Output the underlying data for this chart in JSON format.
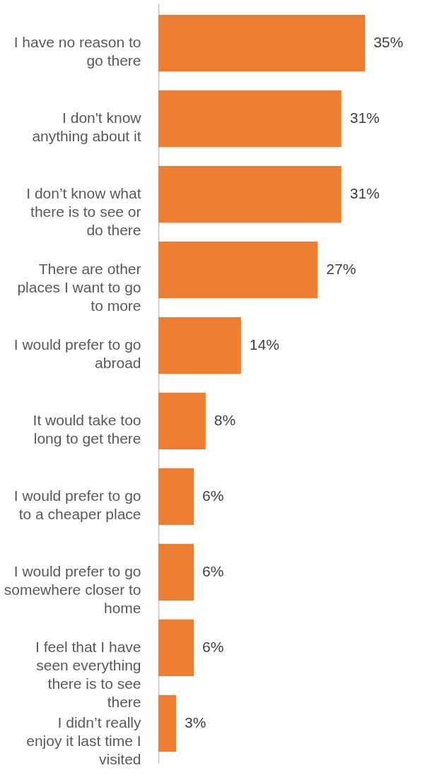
{
  "chart_data": {
    "type": "bar",
    "orientation": "horizontal",
    "categories": [
      "I have no reason to go there",
      "I don't know anything about it",
      "I don’t know what there is to see or do there",
      "There are other places I want to go to more",
      "I would prefer to go abroad",
      "It would take too long to get there",
      "I would prefer to go to a cheaper place",
      "I would prefer to go somewhere closer to home",
      "I feel that I have seen everything there is to see there",
      "I didn’t really enjoy it last time I visited"
    ],
    "values": [
      35,
      31,
      31,
      27,
      14,
      8,
      6,
      6,
      6,
      3
    ],
    "value_labels": [
      "35%",
      "31%",
      "31%",
      "27%",
      "14%",
      "8%",
      "6%",
      "6%",
      "6%",
      "3%"
    ],
    "color": "#ed7d31"
  }
}
